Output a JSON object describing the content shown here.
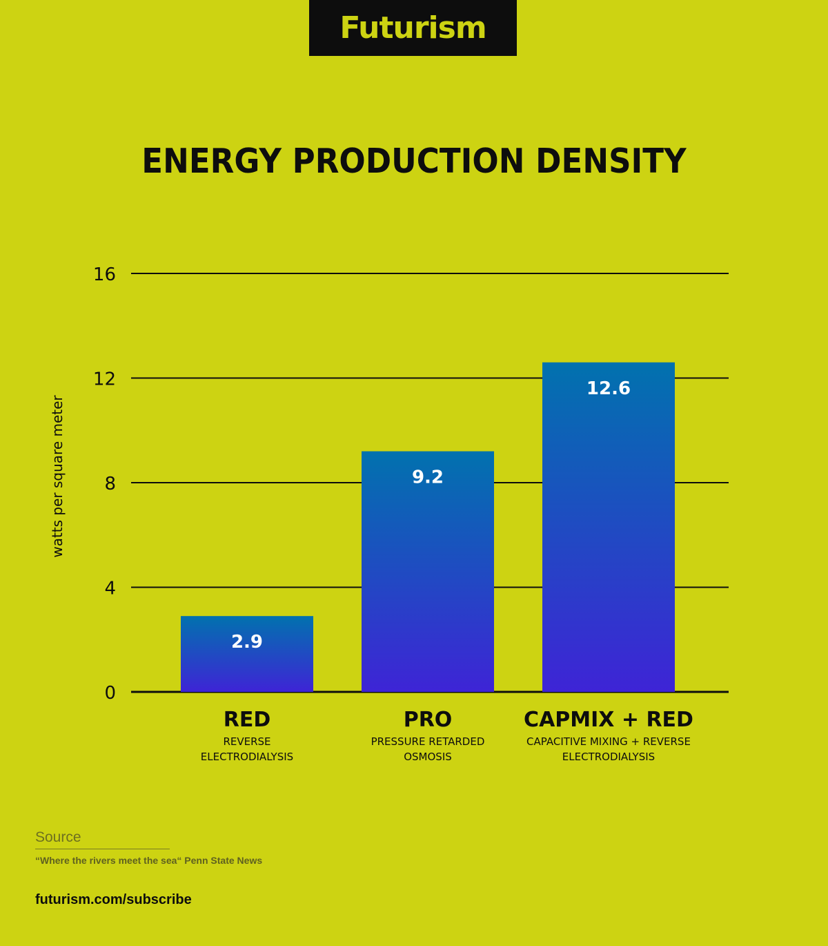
{
  "brand": {
    "logo_text": "Futurism",
    "background_color": "#cdd312",
    "logo_box_color": "#0d0d0d",
    "logo_text_color": "#cdd312"
  },
  "chart_data": {
    "type": "bar",
    "title": "ENERGY PRODUCTION DENSITY",
    "ylabel": "watts per square meter",
    "xlabel": "",
    "ylim": [
      0,
      16
    ],
    "yticks": [
      0,
      4,
      8,
      12,
      16
    ],
    "grid": true,
    "categories": [
      "RED",
      "PRO",
      "CAPMIX + RED"
    ],
    "category_descriptions": [
      [
        "REVERSE",
        "ELECTRODIALYSIS"
      ],
      [
        "PRESSURE RETARDED",
        "OSMOSIS"
      ],
      [
        "CAPACITIVE MIXING + REVERSE",
        "ELECTRODIALYSIS"
      ]
    ],
    "values": [
      2.9,
      9.2,
      12.6
    ],
    "value_labels": [
      "2.9",
      "9.2",
      "12.6"
    ],
    "bar_gradient": [
      "#0172ae",
      "#3e24d6"
    ]
  },
  "footer": {
    "source_label": "Source",
    "source_text": "“Where the rivers meet the sea“ Penn State News",
    "subscribe": "futurism.com/subscribe"
  }
}
